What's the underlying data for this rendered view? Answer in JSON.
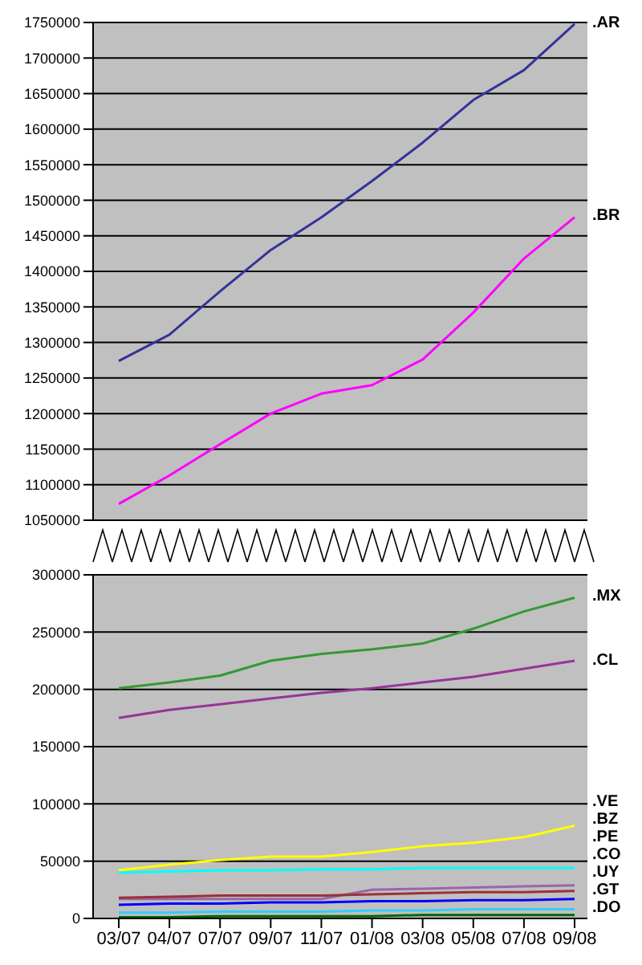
{
  "chart_data": [
    {
      "type": "line",
      "ylim": [
        1050000,
        1750000
      ],
      "yticks": [
        1050000,
        1100000,
        1150000,
        1200000,
        1250000,
        1300000,
        1350000,
        1400000,
        1450000,
        1500000,
        1550000,
        1600000,
        1650000,
        1700000,
        1750000
      ],
      "grid": "y",
      "tick_labels": "y",
      "marker": "none",
      "series": [
        {
          "name": ".AR",
          "color": "#333399",
          "values": [
            1274000,
            1311000,
            1372000,
            1430000,
            1476000,
            1527000,
            1581000,
            1641000,
            1683000,
            1748000
          ]
        },
        {
          "name": ".BR",
          "color": "#ff00ff",
          "values": [
            1073000,
            1113000,
            1157000,
            1200000,
            1228000,
            1240000,
            1276000,
            1342000,
            1418000,
            1476000
          ]
        }
      ]
    },
    {
      "type": "line",
      "categories": [
        "03/07",
        "04/07",
        "07/07",
        "09/07",
        "11/07",
        "01/08",
        "03/08",
        "05/08",
        "07/08",
        "09/08"
      ],
      "ylim": [
        0,
        300000
      ],
      "yticks": [
        0,
        50000,
        100000,
        150000,
        200000,
        250000,
        300000
      ],
      "grid": "y",
      "marker": "none",
      "series": [
        {
          "name": ".MX",
          "color": "#339933",
          "values": [
            201000,
            206000,
            212000,
            225000,
            231000,
            235000,
            240000,
            253000,
            268000,
            280000
          ]
        },
        {
          "name": ".CL",
          "color": "#993399",
          "values": [
            175000,
            182000,
            187000,
            192000,
            197000,
            201000,
            206000,
            211000,
            218000,
            225000
          ]
        },
        {
          "name": ".VE",
          "color": "#ffff00",
          "values": [
            42000,
            47000,
            51000,
            54000,
            54000,
            58000,
            63000,
            66000,
            71000,
            81000
          ]
        },
        {
          "name": ".BZ",
          "color": "#00ffff",
          "values": [
            40000,
            41000,
            42000,
            42000,
            43000,
            43000,
            44000,
            44000,
            44000,
            44000
          ]
        },
        {
          "name": ".PE",
          "color": "#9966aa",
          "values": [
            17000,
            17000,
            17000,
            17000,
            17000,
            25000,
            26000,
            27000,
            28000,
            29000
          ]
        },
        {
          "name": ".CO",
          "color": "#993333",
          "values": [
            18000,
            19000,
            20000,
            20000,
            20000,
            21000,
            22000,
            23000,
            23000,
            24000
          ]
        },
        {
          "name": ".UY",
          "color": "#0000ff",
          "values": [
            12000,
            13000,
            13000,
            14000,
            14000,
            15000,
            15000,
            16000,
            16000,
            17000
          ]
        },
        {
          "name": ".GT",
          "color": "#33ccff",
          "values": [
            5000,
            5000,
            6000,
            6000,
            6000,
            7000,
            7000,
            8000,
            8000,
            8000
          ]
        },
        {
          "name": ".DO",
          "color": "#006600",
          "values": [
            1000,
            1000,
            2000,
            2000,
            2000,
            2000,
            3000,
            3000,
            3000,
            3000
          ]
        }
      ]
    }
  ]
}
